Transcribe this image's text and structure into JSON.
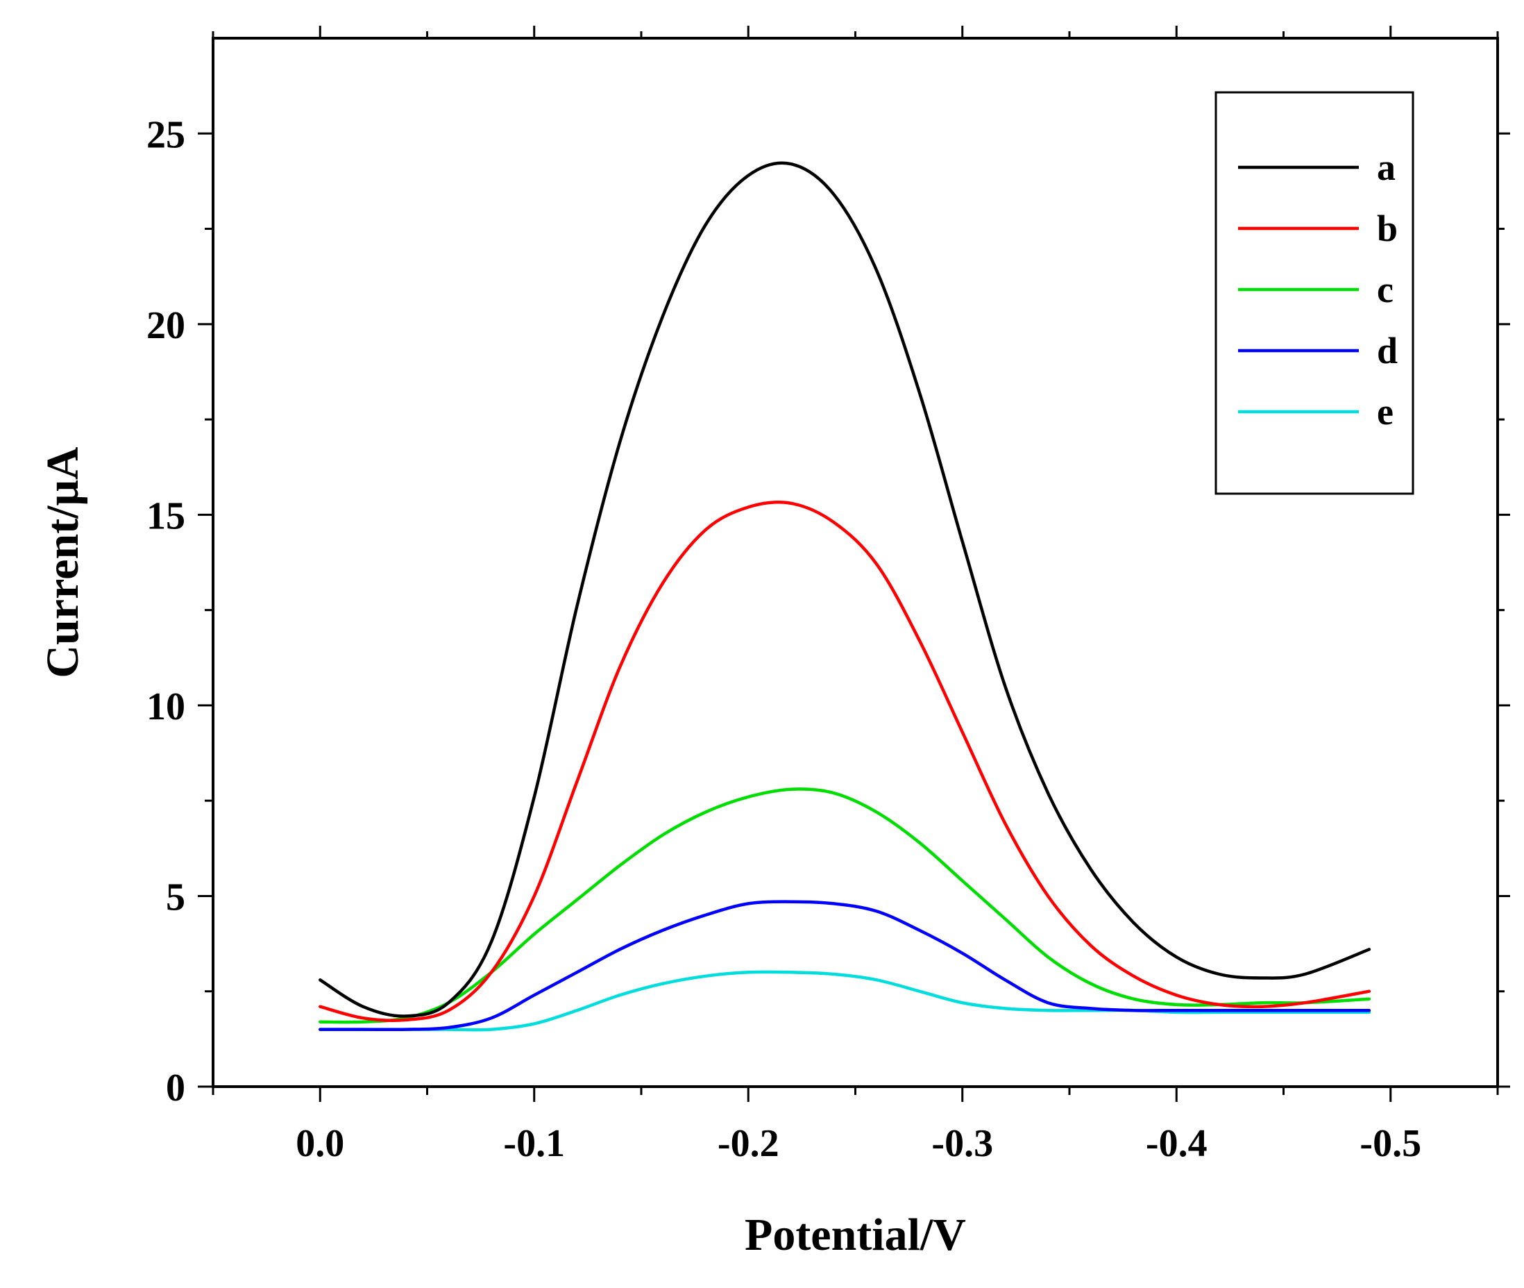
{
  "chart_data": {
    "type": "line",
    "title": "",
    "xlabel": "Potential/V",
    "ylabel": "Current/μA",
    "xlim": [
      0.05,
      -0.55
    ],
    "ylim": [
      0,
      27.5
    ],
    "x_ticks": [
      0.0,
      -0.1,
      -0.2,
      -0.3,
      -0.4,
      -0.5
    ],
    "x_tick_labels": [
      "0.0",
      "-0.1",
      "-0.2",
      "-0.3",
      "-0.4",
      "-0.5"
    ],
    "y_ticks": [
      0,
      5,
      10,
      15,
      20,
      25
    ],
    "y_tick_labels": [
      "0",
      "5",
      "10",
      "15",
      "20",
      "25"
    ],
    "grid": false,
    "legend_position": "top-right",
    "series": [
      {
        "name": "a",
        "color": "#000000",
        "points": [
          [
            0.0,
            2.8
          ],
          [
            -0.02,
            2.1
          ],
          [
            -0.04,
            1.85
          ],
          [
            -0.06,
            2.2
          ],
          [
            -0.08,
            3.8
          ],
          [
            -0.1,
            7.6
          ],
          [
            -0.12,
            12.6
          ],
          [
            -0.14,
            16.9
          ],
          [
            -0.16,
            20.2
          ],
          [
            -0.18,
            22.6
          ],
          [
            -0.2,
            23.9
          ],
          [
            -0.22,
            24.2
          ],
          [
            -0.24,
            23.4
          ],
          [
            -0.26,
            21.4
          ],
          [
            -0.28,
            18.2
          ],
          [
            -0.3,
            14.3
          ],
          [
            -0.32,
            10.5
          ],
          [
            -0.34,
            7.7
          ],
          [
            -0.36,
            5.7
          ],
          [
            -0.38,
            4.3
          ],
          [
            -0.4,
            3.4
          ],
          [
            -0.42,
            2.95
          ],
          [
            -0.44,
            2.85
          ],
          [
            -0.46,
            2.95
          ],
          [
            -0.49,
            3.6
          ]
        ]
      },
      {
        "name": "b",
        "color": "#ff0000",
        "points": [
          [
            0.0,
            2.1
          ],
          [
            -0.02,
            1.8
          ],
          [
            -0.04,
            1.75
          ],
          [
            -0.06,
            2.0
          ],
          [
            -0.08,
            3.0
          ],
          [
            -0.1,
            5.0
          ],
          [
            -0.12,
            8.0
          ],
          [
            -0.14,
            11.0
          ],
          [
            -0.16,
            13.2
          ],
          [
            -0.18,
            14.6
          ],
          [
            -0.2,
            15.2
          ],
          [
            -0.22,
            15.3
          ],
          [
            -0.24,
            14.8
          ],
          [
            -0.26,
            13.7
          ],
          [
            -0.28,
            11.7
          ],
          [
            -0.3,
            9.3
          ],
          [
            -0.32,
            6.9
          ],
          [
            -0.34,
            5.0
          ],
          [
            -0.36,
            3.7
          ],
          [
            -0.38,
            2.9
          ],
          [
            -0.4,
            2.4
          ],
          [
            -0.42,
            2.15
          ],
          [
            -0.44,
            2.1
          ],
          [
            -0.46,
            2.2
          ],
          [
            -0.49,
            2.5
          ]
        ]
      },
      {
        "name": "c",
        "color": "#00dd00",
        "points": [
          [
            0.0,
            1.7
          ],
          [
            -0.02,
            1.7
          ],
          [
            -0.04,
            1.8
          ],
          [
            -0.06,
            2.2
          ],
          [
            -0.08,
            3.0
          ],
          [
            -0.1,
            4.0
          ],
          [
            -0.12,
            4.9
          ],
          [
            -0.14,
            5.8
          ],
          [
            -0.16,
            6.6
          ],
          [
            -0.18,
            7.2
          ],
          [
            -0.2,
            7.6
          ],
          [
            -0.22,
            7.8
          ],
          [
            -0.24,
            7.7
          ],
          [
            -0.26,
            7.2
          ],
          [
            -0.28,
            6.4
          ],
          [
            -0.3,
            5.4
          ],
          [
            -0.32,
            4.4
          ],
          [
            -0.34,
            3.4
          ],
          [
            -0.36,
            2.7
          ],
          [
            -0.38,
            2.3
          ],
          [
            -0.4,
            2.15
          ],
          [
            -0.42,
            2.15
          ],
          [
            -0.44,
            2.2
          ],
          [
            -0.46,
            2.2
          ],
          [
            -0.49,
            2.3
          ]
        ]
      },
      {
        "name": "d",
        "color": "#0000ff",
        "points": [
          [
            0.0,
            1.5
          ],
          [
            -0.02,
            1.5
          ],
          [
            -0.04,
            1.5
          ],
          [
            -0.06,
            1.55
          ],
          [
            -0.08,
            1.8
          ],
          [
            -0.1,
            2.4
          ],
          [
            -0.12,
            3.0
          ],
          [
            -0.14,
            3.6
          ],
          [
            -0.16,
            4.1
          ],
          [
            -0.18,
            4.5
          ],
          [
            -0.2,
            4.8
          ],
          [
            -0.22,
            4.85
          ],
          [
            -0.24,
            4.8
          ],
          [
            -0.26,
            4.6
          ],
          [
            -0.28,
            4.1
          ],
          [
            -0.3,
            3.5
          ],
          [
            -0.32,
            2.8
          ],
          [
            -0.34,
            2.2
          ],
          [
            -0.36,
            2.05
          ],
          [
            -0.38,
            2.0
          ],
          [
            -0.4,
            2.0
          ],
          [
            -0.42,
            2.0
          ],
          [
            -0.44,
            2.0
          ],
          [
            -0.46,
            2.0
          ],
          [
            -0.49,
            2.0
          ]
        ]
      },
      {
        "name": "e",
        "color": "#00dddd",
        "points": [
          [
            0.0,
            1.5
          ],
          [
            -0.02,
            1.5
          ],
          [
            -0.04,
            1.5
          ],
          [
            -0.06,
            1.5
          ],
          [
            -0.08,
            1.5
          ],
          [
            -0.1,
            1.65
          ],
          [
            -0.12,
            2.0
          ],
          [
            -0.14,
            2.4
          ],
          [
            -0.16,
            2.7
          ],
          [
            -0.18,
            2.9
          ],
          [
            -0.2,
            3.0
          ],
          [
            -0.22,
            3.0
          ],
          [
            -0.24,
            2.95
          ],
          [
            -0.26,
            2.8
          ],
          [
            -0.28,
            2.5
          ],
          [
            -0.3,
            2.2
          ],
          [
            -0.32,
            2.05
          ],
          [
            -0.34,
            2.0
          ],
          [
            -0.36,
            2.0
          ],
          [
            -0.38,
            2.0
          ],
          [
            -0.4,
            1.95
          ],
          [
            -0.42,
            1.95
          ],
          [
            -0.44,
            1.95
          ],
          [
            -0.46,
            1.95
          ],
          [
            -0.49,
            1.95
          ]
        ]
      }
    ]
  }
}
